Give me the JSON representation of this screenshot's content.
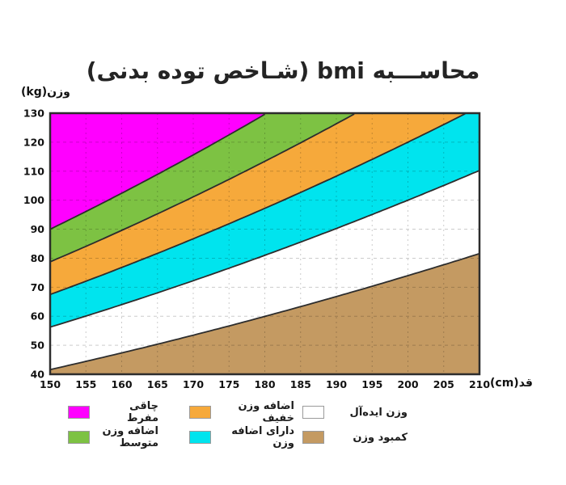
{
  "title": "محاســـبه bmi (شـاخص توده بدنی)",
  "axes": {
    "y_label": "وزن(kg)",
    "x_label": "قد(cm)"
  },
  "chart_data": {
    "type": "area",
    "title": "محاســـبه bmi (شـاخص توده بدنی)",
    "xlabel": "قد(cm)",
    "ylabel": "وزن(kg)",
    "x": {
      "min": 150,
      "max": 210,
      "unit": "cm",
      "ticks": [
        150,
        155,
        160,
        165,
        170,
        175,
        180,
        185,
        190,
        195,
        200,
        205,
        210
      ]
    },
    "y": {
      "min": 40,
      "max": 130,
      "unit": "kg",
      "ticks": [
        40,
        50,
        60,
        70,
        80,
        90,
        100,
        110,
        120,
        130
      ]
    },
    "grid": "dashed",
    "boundary_rule": "weight_kg = BMI x (height_cm/100)^2",
    "boundaries_bmi": [
      40,
      35,
      30,
      25,
      18.5
    ],
    "bands": [
      {
        "name": "چاقی مفرط",
        "bmi_min": 40,
        "bmi_max": null,
        "color": "#FF00FF"
      },
      {
        "name": "اضافه وزن متوسط",
        "bmi_min": 35,
        "bmi_max": 40,
        "color": "#7DC243"
      },
      {
        "name": "اضافه وزن خفیف",
        "bmi_min": 30,
        "bmi_max": 35,
        "color": "#F6A93B"
      },
      {
        "name": "دارای اضافه وزن",
        "bmi_min": 25,
        "bmi_max": 30,
        "color": "#00E4EE"
      },
      {
        "name": "وزن ایده‌آل",
        "bmi_min": 18.5,
        "bmi_max": 25,
        "color": "#FFFFFF"
      },
      {
        "name": "کمبود وزن",
        "bmi_min": null,
        "bmi_max": 18.5,
        "color": "#C49A62"
      }
    ]
  },
  "legend": {
    "items": [
      {
        "label": "چاقی مفرط",
        "color": "#FF00FF"
      },
      {
        "label": "اضافه وزن خفیف",
        "color": "#F6A93B"
      },
      {
        "label": "وزن ایده‌آل",
        "color": "#FFFFFF"
      },
      {
        "label": "اضافه وزن متوسط",
        "color": "#7DC243"
      },
      {
        "label": "دارای اضافه وزن",
        "color": "#00E4EE"
      },
      {
        "label": "کمبود وزن",
        "color": "#C49A62"
      }
    ]
  },
  "colors": {
    "line": "#2d2d2d",
    "grid": "rgba(0,0,0,0.20)",
    "title_text": "#242424",
    "axis_text": "#111111",
    "background": "#ffffff"
  }
}
